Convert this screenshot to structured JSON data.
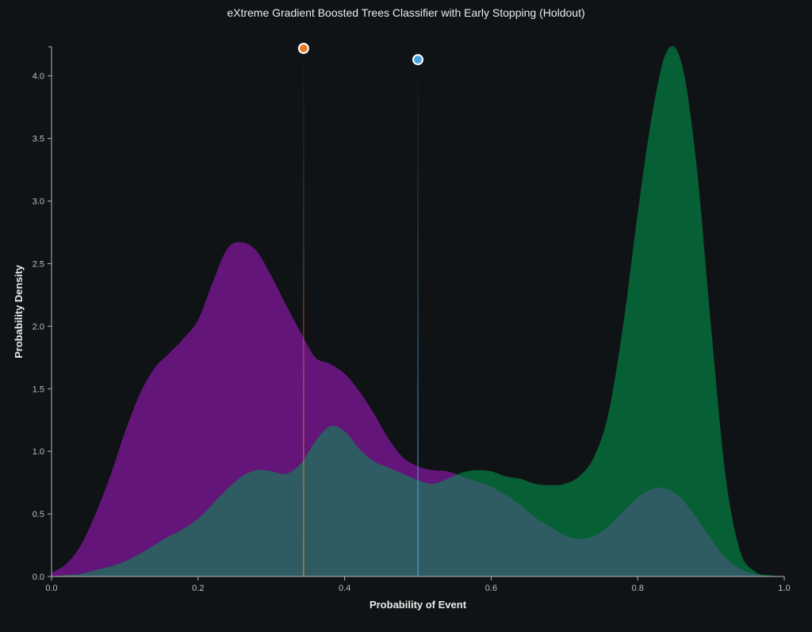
{
  "chart_data": {
    "type": "area",
    "title": "eXtreme Gradient Boosted Trees Classifier with Early Stopping (Holdout)",
    "xlabel": "Probability of Event",
    "ylabel": "Probability Density",
    "xlim": [
      0,
      1.0
    ],
    "ylim": [
      0,
      4.22
    ],
    "x_ticks": [
      "0.0",
      "0.2",
      "0.4",
      "0.6",
      "0.8",
      "1.0"
    ],
    "y_ticks": [
      "0.0",
      "0.5",
      "1.0",
      "1.5",
      "2.0",
      "2.5",
      "3.0",
      "3.5",
      "4.0"
    ],
    "grid": false,
    "legend": "none",
    "colors": {
      "background": "#101316",
      "axis": "#b5b5b5",
      "series_a": "#64157a",
      "series_b": "#076035",
      "overlap": "#2e5c62",
      "threshold_orange": "#e8782a",
      "threshold_blue": "#4aa3df"
    },
    "series": [
      {
        "color": "#64157a",
        "points": [
          [
            0,
            0.03
          ],
          [
            0.02,
            0.1
          ],
          [
            0.04,
            0.25
          ],
          [
            0.06,
            0.5
          ],
          [
            0.08,
            0.8
          ],
          [
            0.1,
            1.15
          ],
          [
            0.12,
            1.45
          ],
          [
            0.14,
            1.66
          ],
          [
            0.16,
            1.78
          ],
          [
            0.18,
            1.9
          ],
          [
            0.2,
            2.05
          ],
          [
            0.22,
            2.35
          ],
          [
            0.24,
            2.62
          ],
          [
            0.26,
            2.67
          ],
          [
            0.28,
            2.6
          ],
          [
            0.3,
            2.4
          ],
          [
            0.32,
            2.17
          ],
          [
            0.34,
            1.95
          ],
          [
            0.36,
            1.75
          ],
          [
            0.38,
            1.7
          ],
          [
            0.4,
            1.62
          ],
          [
            0.42,
            1.48
          ],
          [
            0.44,
            1.3
          ],
          [
            0.46,
            1.1
          ],
          [
            0.48,
            0.95
          ],
          [
            0.5,
            0.88
          ],
          [
            0.52,
            0.85
          ],
          [
            0.54,
            0.84
          ],
          [
            0.56,
            0.8
          ],
          [
            0.58,
            0.76
          ],
          [
            0.6,
            0.72
          ],
          [
            0.62,
            0.65
          ],
          [
            0.64,
            0.57
          ],
          [
            0.66,
            0.47
          ],
          [
            0.68,
            0.4
          ],
          [
            0.7,
            0.33
          ],
          [
            0.72,
            0.3
          ],
          [
            0.74,
            0.32
          ],
          [
            0.76,
            0.4
          ],
          [
            0.78,
            0.52
          ],
          [
            0.8,
            0.63
          ],
          [
            0.82,
            0.7
          ],
          [
            0.84,
            0.7
          ],
          [
            0.86,
            0.62
          ],
          [
            0.88,
            0.47
          ],
          [
            0.9,
            0.3
          ],
          [
            0.92,
            0.15
          ],
          [
            0.94,
            0.06
          ],
          [
            0.96,
            0.02
          ],
          [
            0.98,
            0.0
          ],
          [
            1.0,
            0.0
          ]
        ]
      },
      {
        "color": "#076035",
        "points": [
          [
            0,
            0.0
          ],
          [
            0.02,
            0.01
          ],
          [
            0.04,
            0.02
          ],
          [
            0.06,
            0.05
          ],
          [
            0.08,
            0.08
          ],
          [
            0.1,
            0.12
          ],
          [
            0.12,
            0.18
          ],
          [
            0.14,
            0.25
          ],
          [
            0.16,
            0.32
          ],
          [
            0.18,
            0.38
          ],
          [
            0.2,
            0.46
          ],
          [
            0.22,
            0.58
          ],
          [
            0.24,
            0.7
          ],
          [
            0.26,
            0.8
          ],
          [
            0.28,
            0.85
          ],
          [
            0.3,
            0.84
          ],
          [
            0.32,
            0.82
          ],
          [
            0.34,
            0.9
          ],
          [
            0.36,
            1.08
          ],
          [
            0.38,
            1.2
          ],
          [
            0.4,
            1.16
          ],
          [
            0.42,
            1.02
          ],
          [
            0.44,
            0.92
          ],
          [
            0.46,
            0.87
          ],
          [
            0.48,
            0.82
          ],
          [
            0.5,
            0.77
          ],
          [
            0.52,
            0.74
          ],
          [
            0.54,
            0.78
          ],
          [
            0.56,
            0.83
          ],
          [
            0.58,
            0.85
          ],
          [
            0.6,
            0.84
          ],
          [
            0.62,
            0.8
          ],
          [
            0.64,
            0.78
          ],
          [
            0.66,
            0.74
          ],
          [
            0.68,
            0.73
          ],
          [
            0.7,
            0.74
          ],
          [
            0.72,
            0.8
          ],
          [
            0.74,
            0.95
          ],
          [
            0.76,
            1.3
          ],
          [
            0.78,
            2.0
          ],
          [
            0.8,
            2.9
          ],
          [
            0.82,
            3.7
          ],
          [
            0.84,
            4.2
          ],
          [
            0.86,
            4.1
          ],
          [
            0.88,
            3.3
          ],
          [
            0.9,
            2.0
          ],
          [
            0.92,
            0.8
          ],
          [
            0.94,
            0.2
          ],
          [
            0.96,
            0.04
          ],
          [
            0.98,
            0.01
          ],
          [
            1.0,
            0.0
          ]
        ]
      }
    ],
    "thresholds": [
      {
        "x": 0.344,
        "color": "#e8782a",
        "marker_y": 4.22
      },
      {
        "x": 0.5,
        "color": "#4aa3df",
        "marker_y": 4.13
      }
    ]
  }
}
